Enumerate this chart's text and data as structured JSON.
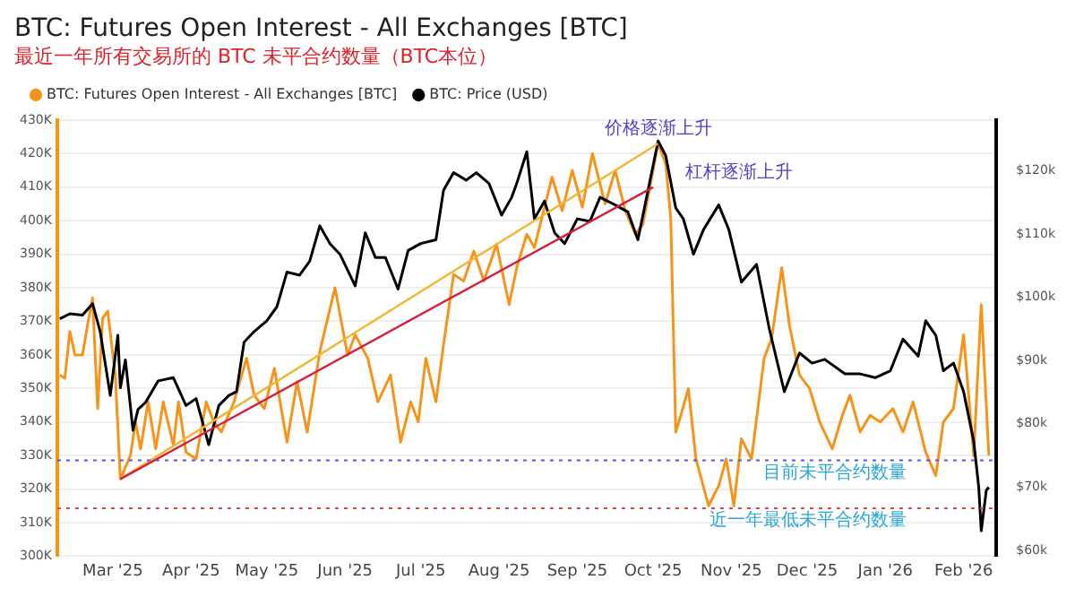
{
  "chart_data": {
    "type": "line",
    "title": "BTC: Futures Open Interest - All Exchanges [BTC]",
    "subtitle": "最近一年所有交易所的 BTC 未平合约数量（BTC本位）",
    "legend": "top left",
    "grid": "y",
    "xlim": [
      "2025-02-07",
      "2026-02-14"
    ],
    "xticks": [
      {
        "value": "2025-03-01",
        "label": "Mar '25"
      },
      {
        "value": "2025-04-01",
        "label": "Apr '25"
      },
      {
        "value": "2025-05-01",
        "label": "May '25"
      },
      {
        "value": "2025-06-01",
        "label": "Jun '25"
      },
      {
        "value": "2025-07-01",
        "label": "Jul '25"
      },
      {
        "value": "2025-08-01",
        "label": "Aug '25"
      },
      {
        "value": "2025-09-01",
        "label": "Sep '25"
      },
      {
        "value": "2025-10-01",
        "label": "Oct '25"
      },
      {
        "value": "2025-11-01",
        "label": "Nov '25"
      },
      {
        "value": "2025-12-01",
        "label": "Dec '25"
      },
      {
        "value": "2026-01-01",
        "label": "Jan '26"
      },
      {
        "value": "2026-02-01",
        "label": "Feb '26"
      }
    ],
    "ylim": [
      300000,
      430000
    ],
    "yticks": [
      {
        "value": 300000,
        "label": "300K"
      },
      {
        "value": 310000,
        "label": "310K"
      },
      {
        "value": 320000,
        "label": "320K"
      },
      {
        "value": 330000,
        "label": "330K"
      },
      {
        "value": 340000,
        "label": "340K"
      },
      {
        "value": 350000,
        "label": "350K"
      },
      {
        "value": 360000,
        "label": "360K"
      },
      {
        "value": 370000,
        "label": "370K"
      },
      {
        "value": 380000,
        "label": "380K"
      },
      {
        "value": 390000,
        "label": "390K"
      },
      {
        "value": 400000,
        "label": "400K"
      },
      {
        "value": 410000,
        "label": "410K"
      },
      {
        "value": 420000,
        "label": "420K"
      },
      {
        "value": 430000,
        "label": "430K"
      }
    ],
    "y2lim": [
      59100,
      128000
    ],
    "y2ticks": [
      {
        "value": 60000,
        "label": "$60k"
      },
      {
        "value": 70000,
        "label": "$70k"
      },
      {
        "value": 80000,
        "label": "$80k"
      },
      {
        "value": 90000,
        "label": "$90k"
      },
      {
        "value": 100000,
        "label": "$100k"
      },
      {
        "value": 110000,
        "label": "$110k"
      },
      {
        "value": 120000,
        "label": "$120k"
      }
    ],
    "series": [
      {
        "name": "BTC: Futures Open Interest - All Exchanges [BTC]",
        "color": "#f7931a",
        "x": [
          "2025-02-08",
          "2025-02-10",
          "2025-02-12",
          "2025-02-14",
          "2025-02-17",
          "2025-02-19",
          "2025-02-21",
          "2025-02-23",
          "2025-02-25",
          "2025-02-27",
          "2025-03-02",
          "2025-03-04",
          "2025-03-08",
          "2025-03-10",
          "2025-03-12",
          "2025-03-15",
          "2025-03-18",
          "2025-03-21",
          "2025-03-25",
          "2025-03-27",
          "2025-03-30",
          "2025-04-03",
          "2025-04-07",
          "2025-04-10",
          "2025-04-13",
          "2025-04-18",
          "2025-04-23",
          "2025-04-26",
          "2025-04-30",
          "2025-05-04",
          "2025-05-09",
          "2025-05-13",
          "2025-05-17",
          "2025-05-22",
          "2025-05-28",
          "2025-06-02",
          "2025-06-05",
          "2025-06-10",
          "2025-06-14",
          "2025-06-19",
          "2025-06-23",
          "2025-06-27",
          "2025-06-30",
          "2025-07-03",
          "2025-07-07",
          "2025-07-10",
          "2025-07-14",
          "2025-07-18",
          "2025-07-22",
          "2025-07-26",
          "2025-07-31",
          "2025-08-05",
          "2025-08-08",
          "2025-08-12",
          "2025-08-15",
          "2025-08-18",
          "2025-08-22",
          "2025-08-26",
          "2025-08-30",
          "2025-09-03",
          "2025-09-07",
          "2025-09-12",
          "2025-09-16",
          "2025-09-20",
          "2025-09-24",
          "2025-09-27",
          "2025-09-30",
          "2025-10-03",
          "2025-10-06",
          "2025-10-08",
          "2025-10-10",
          "2025-10-12",
          "2025-10-15",
          "2025-10-18",
          "2025-10-23",
          "2025-10-27",
          "2025-10-30",
          "2025-11-02",
          "2025-11-05",
          "2025-11-09",
          "2025-11-14",
          "2025-11-17",
          "2025-11-21",
          "2025-11-24",
          "2025-11-28",
          "2025-12-02",
          "2025-12-06",
          "2025-12-11",
          "2025-12-15",
          "2025-12-18",
          "2025-12-22",
          "2025-12-26",
          "2025-12-30",
          "2026-01-04",
          "2026-01-08",
          "2026-01-12",
          "2026-01-17",
          "2026-01-21",
          "2026-01-24",
          "2026-01-28",
          "2026-02-01",
          "2026-02-05",
          "2026-02-08",
          "2026-02-11"
        ],
        "values": [
          354000,
          353000,
          367000,
          360000,
          360000,
          369000,
          377000,
          344000,
          371000,
          373000,
          354000,
          323000,
          330000,
          340000,
          332000,
          346000,
          332000,
          346000,
          333000,
          346000,
          331000,
          329000,
          346000,
          340000,
          337000,
          346000,
          359000,
          348000,
          344000,
          356000,
          334000,
          352000,
          337000,
          361000,
          380000,
          360000,
          366000,
          359000,
          346000,
          354000,
          334000,
          346000,
          340000,
          359000,
          346000,
          363000,
          384000,
          382000,
          391000,
          382000,
          393000,
          375000,
          386000,
          396000,
          392000,
          401000,
          413000,
          403000,
          415000,
          404000,
          420000,
          405000,
          415000,
          403000,
          396000,
          399000,
          411000,
          423000,
          417000,
          401000,
          337000,
          342000,
          350000,
          329000,
          315000,
          321000,
          329000,
          315000,
          335000,
          329000,
          359000,
          365000,
          386000,
          369000,
          354000,
          350000,
          340000,
          332000,
          342000,
          348000,
          337000,
          342000,
          340000,
          344000,
          337000,
          346000,
          331000,
          324000,
          340000,
          344000,
          366000,
          330000,
          375000,
          330000
        ]
      },
      {
        "name": "BTC: Price (USD)",
        "color": "#000000",
        "axis": "y2",
        "x": [
          "2025-02-08",
          "2025-02-12",
          "2025-02-17",
          "2025-02-21",
          "2025-02-24",
          "2025-02-28",
          "2025-03-03",
          "2025-03-04",
          "2025-03-06",
          "2025-03-09",
          "2025-03-11",
          "2025-03-14",
          "2025-03-19",
          "2025-03-25",
          "2025-03-30",
          "2025-04-03",
          "2025-04-08",
          "2025-04-12",
          "2025-04-16",
          "2025-04-19",
          "2025-04-22",
          "2025-04-26",
          "2025-05-01",
          "2025-05-05",
          "2025-05-09",
          "2025-05-14",
          "2025-05-18",
          "2025-05-22",
          "2025-05-26",
          "2025-05-30",
          "2025-06-05",
          "2025-06-09",
          "2025-06-13",
          "2025-06-17",
          "2025-06-22",
          "2025-06-26",
          "2025-07-01",
          "2025-07-07",
          "2025-07-10",
          "2025-07-14",
          "2025-07-19",
          "2025-07-23",
          "2025-07-28",
          "2025-08-02",
          "2025-08-06",
          "2025-08-08",
          "2025-08-12",
          "2025-08-15",
          "2025-08-19",
          "2025-08-23",
          "2025-08-27",
          "2025-09-01",
          "2025-09-06",
          "2025-09-10",
          "2025-09-16",
          "2025-09-21",
          "2025-09-25",
          "2025-09-29",
          "2025-10-03",
          "2025-10-06",
          "2025-10-10",
          "2025-10-13",
          "2025-10-17",
          "2025-10-21",
          "2025-10-27",
          "2025-10-31",
          "2025-11-05",
          "2025-11-11",
          "2025-11-16",
          "2025-11-22",
          "2025-11-28",
          "2025-12-03",
          "2025-12-08",
          "2025-12-16",
          "2025-12-22",
          "2025-12-28",
          "2026-01-03",
          "2026-01-08",
          "2026-01-14",
          "2026-01-17",
          "2026-01-21",
          "2026-01-24",
          "2026-01-28",
          "2026-02-01",
          "2026-02-05",
          "2026-02-07",
          "2026-02-08",
          "2026-02-10",
          "2026-02-11"
        ],
        "values": [
          96600,
          97400,
          97200,
          99000,
          94600,
          84500,
          94000,
          85700,
          90100,
          79000,
          82300,
          83400,
          86800,
          87300,
          82900,
          84000,
          76700,
          82900,
          84500,
          85100,
          92900,
          94600,
          96300,
          98500,
          104000,
          103500,
          105700,
          111300,
          108500,
          106800,
          101800,
          110200,
          106300,
          106300,
          101300,
          107400,
          108500,
          109100,
          116900,
          119700,
          118500,
          119700,
          118000,
          113000,
          115800,
          118000,
          123000,
          112400,
          115200,
          110200,
          108500,
          112400,
          112000,
          115800,
          114600,
          113500,
          109100,
          116900,
          124700,
          122400,
          114100,
          112400,
          106800,
          110700,
          114600,
          110700,
          102400,
          105200,
          95100,
          85100,
          91200,
          89600,
          90200,
          87900,
          87900,
          87300,
          88400,
          93400,
          90700,
          96300,
          94000,
          88400,
          89600,
          85100,
          77300,
          70000,
          63100,
          69500,
          70000
        ]
      },
      {
        "color": "#f2b632",
        "x": [
          "2025-03-04",
          "2025-10-03"
        ],
        "values": [
          323000,
          423000
        ]
      },
      {
        "color": "#d61f3c",
        "x": [
          "2025-03-04",
          "2025-10-01"
        ],
        "values": [
          323000,
          410000
        ]
      }
    ],
    "ref_lines": [
      {
        "axis": "y",
        "value": 328600,
        "label": "目前未平合约数量",
        "color": "#5555dd",
        "line_style": "dotted"
      },
      {
        "axis": "y",
        "value": 314300,
        "label": "近一年最低未平合约数量",
        "color": "#dd4444",
        "line_style": "dotted"
      }
    ],
    "annotations": [
      {
        "text": "价格逐渐上升",
        "x": "2025-10-03",
        "y": 423000
      },
      {
        "text": "杠杆逐渐上升",
        "x": "2025-10-01",
        "y": 410000
      }
    ]
  }
}
